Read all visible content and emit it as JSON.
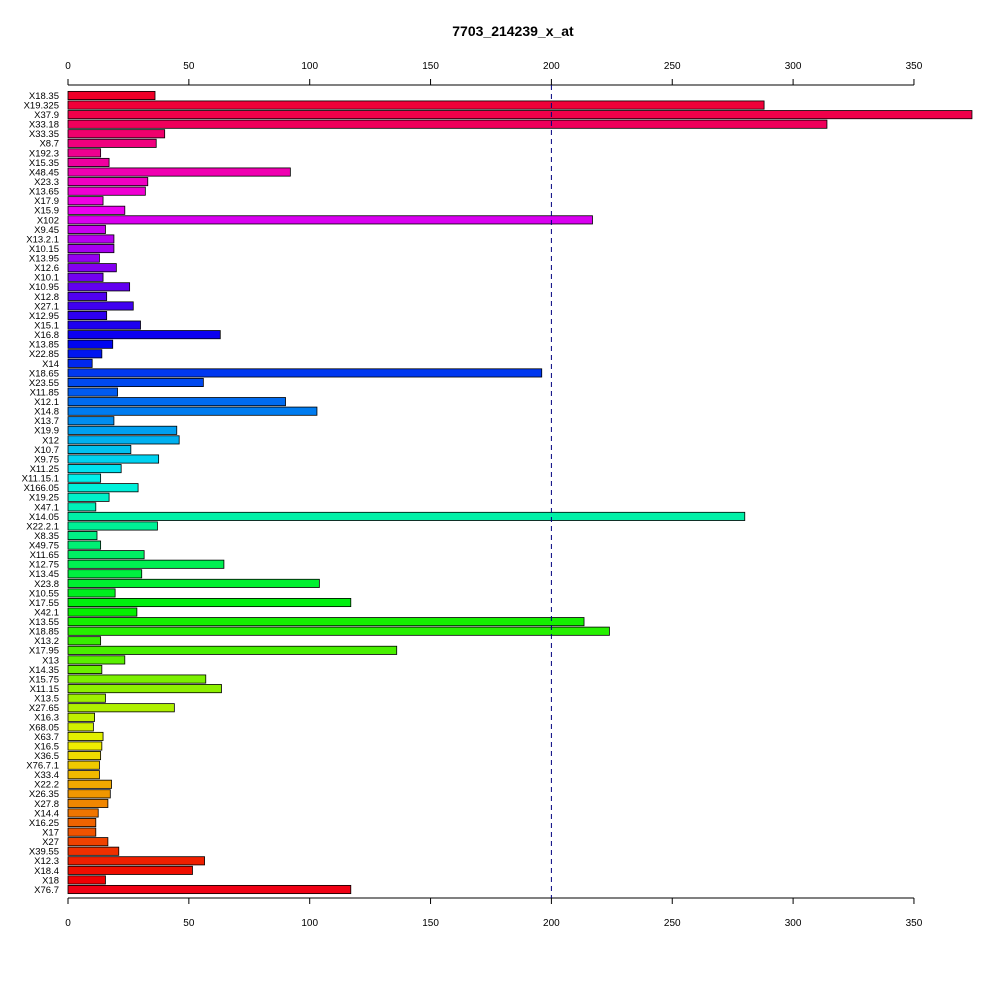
{
  "chart_data": {
    "type": "bar",
    "orientation": "horizontal",
    "title": "7703_214239_x_at",
    "xlabel": "",
    "ylabel": "",
    "xlim": [
      0,
      375
    ],
    "x_ticks": [
      0,
      50,
      100,
      150,
      200,
      250,
      300,
      350
    ],
    "x_tick_labels": [
      "0",
      "50",
      "100",
      "150",
      "200",
      "250",
      "300",
      "350"
    ],
    "axes": "top-and-bottom",
    "grid": false,
    "reference_line": {
      "value": 200,
      "color": "#000080",
      "style": "dashed"
    },
    "bar_colors": "rainbow gradient from red through magenta, purple, blue, cyan, green, yellow, orange, back to red",
    "categories": [
      "X18.35",
      "X19.325",
      "X37.9",
      "X33.18",
      "X33.35",
      "X8.7",
      "X192.3",
      "X15.35",
      "X48.45",
      "X23.3",
      "X13.65",
      "X17.9",
      "X15.9",
      "X102",
      "X9.45",
      "X13.2.1",
      "X10.15",
      "X13.95",
      "X12.6",
      "X10.1",
      "X10.95",
      "X12.8",
      "X27.1",
      "X12.95",
      "X15.1",
      "X16.8",
      "X13.85",
      "X22.85",
      "X14",
      "X18.65",
      "X23.55",
      "X11.85",
      "X12.1",
      "X14.8",
      "X13.7",
      "X19.9",
      "X12",
      "X10.7",
      "X9.75",
      "X11.25",
      "X11.15.1",
      "X166.05",
      "X19.25",
      "X47.1",
      "X14.05",
      "X22.2.1",
      "X8.35",
      "X49.75",
      "X11.65",
      "X12.75",
      "X13.45",
      "X23.8",
      "X10.55",
      "X17.55",
      "X42.1",
      "X13.55",
      "X18.85",
      "X13.2",
      "X17.95",
      "X13",
      "X14.35",
      "X15.75",
      "X11.15",
      "X13.5",
      "X27.65",
      "X16.3",
      "X68.05",
      "X63.7",
      "X16.5",
      "X36.5",
      "X76.7.1",
      "X33.4",
      "X22.2",
      "X26.35",
      "X27.8",
      "X14.4",
      "X16.25",
      "X17",
      "X27",
      "X39.55",
      "X12.3",
      "X18.4",
      "X18",
      "X76.7"
    ],
    "values": [
      36,
      288,
      374,
      314,
      40,
      36.5,
      13.5,
      17,
      92,
      33,
      32,
      14.5,
      23.5,
      217,
      15.5,
      19,
      19,
      13,
      20,
      14.5,
      25.5,
      16,
      27,
      16,
      30,
      63,
      18.5,
      14,
      10,
      196,
      56,
      20.5,
      90,
      103,
      19,
      45,
      46,
      26,
      37.5,
      22,
      13.5,
      29,
      17,
      11.5,
      280,
      37,
      12,
      13.5,
      31.5,
      64.5,
      30.5,
      104,
      19.5,
      117,
      28.5,
      213.5,
      224,
      13.5,
      136,
      23.5,
      14,
      57,
      63.5,
      15.5,
      44,
      11,
      10.5,
      14.5,
      14,
      13.5,
      13,
      13,
      18,
      17.5,
      16.5,
      12.5,
      11.5,
      11.5,
      16.5,
      21,
      56.5,
      51.5,
      15.5,
      117
    ]
  }
}
